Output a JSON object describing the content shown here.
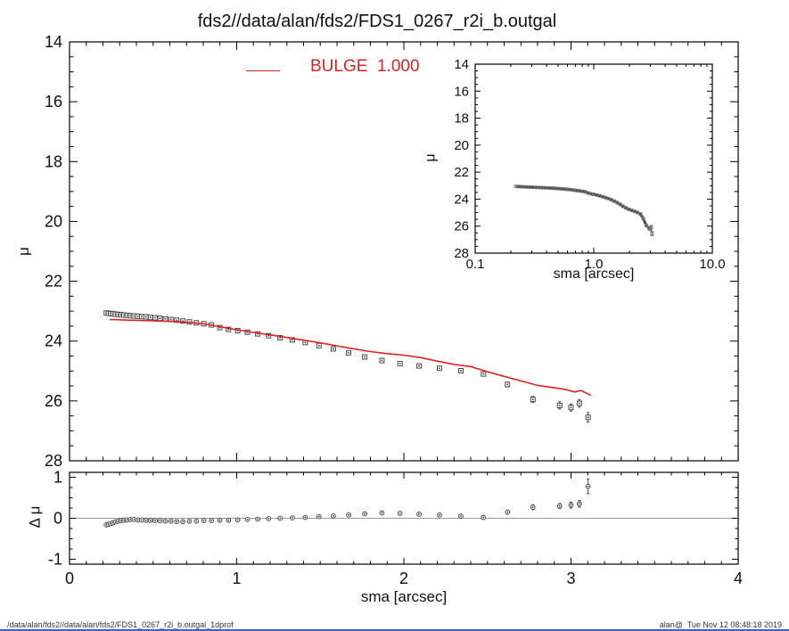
{
  "page": {
    "title": "fds2//data/alan/fds2/FDS1_0267_r2i_b.outgal",
    "footer_left": "/data/alan/fds2//data/alan/fds2/FDS1_0267_r2i_b.outgal_1dprof",
    "footer_right": "alan@  Tue Nov 12 08:48:18 2019",
    "bottom_border_color": "#3c63c8"
  },
  "legend": {
    "label": "BULGE  1.000",
    "color": "#dd2222"
  },
  "colors": {
    "frame": "#000000",
    "marker": "#3a3a3a",
    "marker_fill": "#f5f5f5",
    "model_red": "#dd2222",
    "zero_line": "#999999",
    "inset_band": "#4a4a4a"
  },
  "chart_data": [
    {
      "id": "main",
      "type": "scatter",
      "xlabel": "sma [arcsec]",
      "ylabel": "μ",
      "xscale": "linear",
      "xlim": [
        0,
        4
      ],
      "ytop": 14,
      "ybottom": 28,
      "xticks": {
        "major": [
          0,
          1,
          2,
          3,
          4
        ],
        "labels": null,
        "minor_step": 0.1
      },
      "yticks": {
        "major": [
          14,
          16,
          18,
          20,
          22,
          24,
          26,
          28
        ],
        "labels": [
          "14",
          "16",
          "18",
          "20",
          "22",
          "24",
          "26",
          "28"
        ],
        "minor_step": 0.5
      },
      "series": [
        {
          "name": "galaxy surface brightness profile",
          "marker": "square",
          "ms": 5,
          "dot": true,
          "color": "#3a3a3a",
          "fill": "#f5f5f5",
          "x": [
            0.22,
            0.233,
            0.246,
            0.26,
            0.275,
            0.291,
            0.308,
            0.326,
            0.345,
            0.365,
            0.386,
            0.409,
            0.432,
            0.457,
            0.484,
            0.512,
            0.541,
            0.573,
            0.606,
            0.641,
            0.678,
            0.717,
            0.759,
            0.803,
            0.849,
            0.899,
            0.951,
            1.006,
            1.064,
            1.126,
            1.191,
            1.26,
            1.333,
            1.41,
            1.492,
            1.578,
            1.67,
            1.766,
            1.869,
            1.977,
            2.091,
            2.213,
            2.341,
            2.476,
            2.62,
            2.772,
            2.932,
            3.0,
            3.05,
            3.102
          ],
          "y": [
            23.06,
            23.07,
            23.08,
            23.09,
            23.1,
            23.11,
            23.12,
            23.13,
            23.14,
            23.15,
            23.16,
            23.17,
            23.18,
            23.19,
            23.21,
            23.22,
            23.24,
            23.26,
            23.28,
            23.3,
            23.33,
            23.36,
            23.39,
            23.42,
            23.46,
            23.55,
            23.61,
            23.65,
            23.7,
            23.76,
            23.82,
            23.89,
            23.96,
            24.05,
            24.15,
            24.26,
            24.39,
            24.53,
            24.65,
            24.75,
            24.83,
            24.91,
            24.99,
            25.1,
            25.45,
            25.95,
            26.15,
            26.22,
            26.08,
            26.55
          ],
          "yerr": [
            0.01,
            0.01,
            0.01,
            0.01,
            0.01,
            0.01,
            0.01,
            0.01,
            0.01,
            0.01,
            0.01,
            0.01,
            0.01,
            0.01,
            0.01,
            0.01,
            0.01,
            0.01,
            0.01,
            0.01,
            0.01,
            0.01,
            0.01,
            0.01,
            0.01,
            0.02,
            0.02,
            0.02,
            0.02,
            0.02,
            0.02,
            0.02,
            0.03,
            0.03,
            0.03,
            0.03,
            0.04,
            0.04,
            0.04,
            0.05,
            0.05,
            0.06,
            0.06,
            0.07,
            0.08,
            0.1,
            0.12,
            0.12,
            0.13,
            0.16
          ]
        },
        {
          "name": "BULGE model  1.000",
          "marker": "none",
          "line": true,
          "line_width": 1.6,
          "color": "#dd2222",
          "x": [
            0.24,
            0.35,
            0.5,
            0.65,
            0.8,
            0.9,
            1.0,
            1.1,
            1.2,
            1.3,
            1.4,
            1.5,
            1.6,
            1.7,
            1.8,
            1.9,
            2.0,
            2.1,
            2.2,
            2.3,
            2.4,
            2.5,
            2.6,
            2.7,
            2.8,
            2.9,
            2.97,
            3.02,
            3.06,
            3.12
          ],
          "y": [
            23.28,
            23.3,
            23.32,
            23.35,
            23.42,
            23.52,
            23.62,
            23.71,
            23.79,
            23.88,
            23.97,
            24.06,
            24.16,
            24.26,
            24.35,
            24.42,
            24.47,
            24.55,
            24.67,
            24.78,
            24.85,
            25.02,
            25.18,
            25.33,
            25.48,
            25.56,
            25.62,
            25.7,
            25.65,
            25.82
          ]
        }
      ]
    },
    {
      "id": "inset",
      "type": "line",
      "xlabel": "sma [arcsec]",
      "ylabel": "μ",
      "xscale": "log",
      "xlim": [
        0.1,
        10
      ],
      "ytop": 14,
      "ybottom": 28,
      "xticks": {
        "major": [
          0.1,
          1,
          10
        ],
        "labels": [
          "0.1",
          "1.0",
          "10.0"
        ]
      },
      "yticks": {
        "major": [
          14,
          16,
          18,
          20,
          22,
          24,
          26,
          28
        ],
        "labels": [
          "14",
          "16",
          "18",
          "20",
          "22",
          "24",
          "26",
          "28"
        ],
        "minor_step": 0.5
      },
      "series": [
        {
          "name": "galaxy surface brightness profile (log sma)",
          "data_from": "main:0",
          "marker": "square",
          "ms": 3,
          "dot": false,
          "line": true,
          "line_width": 3,
          "line_color": "#4a4a4a",
          "line_exclude_last": true,
          "color": "#777777",
          "fill": "none"
        }
      ]
    },
    {
      "id": "residual",
      "type": "scatter",
      "xlabel": "sma [arcsec]",
      "ylabel": "Δ μ",
      "xscale": "linear",
      "xlim": [
        0,
        4
      ],
      "ytop": 1.12,
      "ybottom": -1.12,
      "zero_line": true,
      "xticks": {
        "major": [
          0,
          1,
          2,
          3,
          4
        ],
        "labels": [
          "0",
          "1",
          "2",
          "3",
          "4"
        ],
        "minor_step": 0.1
      },
      "yticks": {
        "major": [
          -1,
          0,
          1
        ],
        "labels": [
          "-1",
          "0",
          "1"
        ],
        "minor_step": 0.25
      },
      "series": [
        {
          "name": "data minus bulge model residuals",
          "marker": "circle",
          "ms": 2.4,
          "dot": true,
          "color": "#3a3a3a",
          "fill": "#f5f5f5",
          "x": [
            0.22,
            0.233,
            0.246,
            0.26,
            0.275,
            0.291,
            0.308,
            0.326,
            0.345,
            0.365,
            0.386,
            0.409,
            0.432,
            0.457,
            0.484,
            0.512,
            0.541,
            0.573,
            0.606,
            0.641,
            0.678,
            0.717,
            0.759,
            0.803,
            0.849,
            0.899,
            0.951,
            1.006,
            1.064,
            1.126,
            1.191,
            1.26,
            1.333,
            1.41,
            1.492,
            1.578,
            1.67,
            1.766,
            1.869,
            1.977,
            2.091,
            2.213,
            2.341,
            2.476,
            2.62,
            2.772,
            2.932,
            3.0,
            3.05,
            3.102
          ],
          "y": [
            -0.16,
            -0.15,
            -0.13,
            -0.11,
            -0.09,
            -0.07,
            -0.06,
            -0.05,
            -0.04,
            -0.03,
            -0.03,
            -0.04,
            -0.04,
            -0.05,
            -0.05,
            -0.06,
            -0.06,
            -0.07,
            -0.07,
            -0.08,
            -0.08,
            -0.07,
            -0.07,
            -0.06,
            -0.06,
            -0.05,
            -0.05,
            -0.04,
            -0.03,
            -0.02,
            -0.01,
            0.0,
            0.01,
            0.02,
            0.04,
            0.06,
            0.08,
            0.11,
            0.13,
            0.12,
            0.1,
            0.08,
            0.05,
            0.02,
            0.15,
            0.27,
            0.3,
            0.32,
            0.35,
            0.78
          ],
          "yerr": [
            0.01,
            0.01,
            0.01,
            0.01,
            0.01,
            0.01,
            0.01,
            0.01,
            0.01,
            0.01,
            0.01,
            0.01,
            0.01,
            0.01,
            0.01,
            0.01,
            0.01,
            0.01,
            0.01,
            0.01,
            0.01,
            0.01,
            0.01,
            0.01,
            0.01,
            0.01,
            0.01,
            0.01,
            0.01,
            0.01,
            0.02,
            0.02,
            0.02,
            0.02,
            0.03,
            0.03,
            0.03,
            0.03,
            0.04,
            0.04,
            0.04,
            0.04,
            0.05,
            0.05,
            0.05,
            0.06,
            0.06,
            0.07,
            0.08,
            0.18
          ]
        }
      ]
    }
  ]
}
